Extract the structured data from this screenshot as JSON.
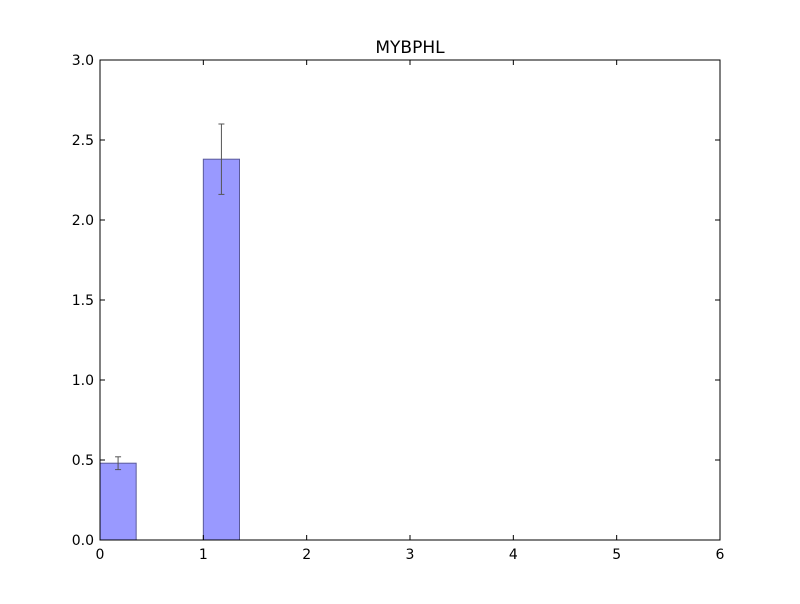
{
  "chart_data": {
    "type": "bar",
    "title": "MYBPHL",
    "xlabel": "",
    "ylabel": "",
    "xlim": [
      0,
      6
    ],
    "ylim": [
      0,
      3
    ],
    "xticks": [
      "0",
      "1",
      "2",
      "3",
      "4",
      "5",
      "6"
    ],
    "yticks": [
      "0.0",
      "0.5",
      "1.0",
      "1.5",
      "2.0",
      "2.5",
      "3.0"
    ],
    "grid": false,
    "legend": "none",
    "bar_color": "#9999ff",
    "bar_edge_color": "#5a5a9a",
    "errorbar_color": "#555555",
    "bars": [
      {
        "x": 0,
        "width": 0.35,
        "value": 0.48,
        "error": 0.04
      },
      {
        "x": 1,
        "width": 0.35,
        "value": 2.38,
        "error": 0.22
      }
    ]
  }
}
